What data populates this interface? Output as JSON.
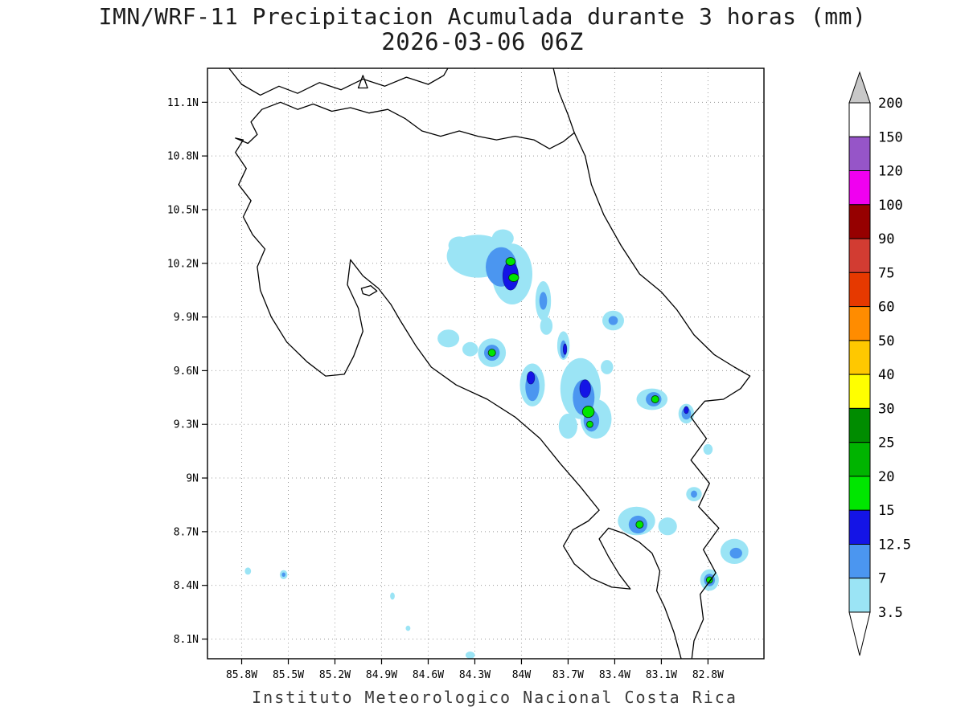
{
  "title": "IMN/WRF-11 Precipitacion Acumulada durante 3 horas (mm)",
  "subtitle": "2026-03-06 06Z",
  "footer": "Instituto Meteorologico Nacional Costa Rica",
  "chart_data": {
    "type": "heatmap",
    "title": "IMN/WRF-11 Precipitacion Acumulada durante 3 horas (mm)",
    "subtitle": "2026-03-06 06Z",
    "units": "mm",
    "lon_range": [
      -86.02,
      -82.44
    ],
    "lat_range": [
      7.99,
      11.29
    ],
    "grid": true,
    "lon_ticks": [
      {
        "label": "85.8W",
        "value": -85.8
      },
      {
        "label": "85.5W",
        "value": -85.5
      },
      {
        "label": "85.2W",
        "value": -85.2
      },
      {
        "label": "84.9W",
        "value": -84.9
      },
      {
        "label": "84.6W",
        "value": -84.6
      },
      {
        "label": "84.3W",
        "value": -84.3
      },
      {
        "label": "84W",
        "value": -84.0
      },
      {
        "label": "83.7W",
        "value": -83.7
      },
      {
        "label": "83.4W",
        "value": -83.4
      },
      {
        "label": "83.1W",
        "value": -83.1
      },
      {
        "label": "82.8W",
        "value": -82.8
      }
    ],
    "lat_ticks": [
      {
        "label": "11.1N",
        "value": 11.1
      },
      {
        "label": "10.8N",
        "value": 10.8
      },
      {
        "label": "10.5N",
        "value": 10.5
      },
      {
        "label": "10.2N",
        "value": 10.2
      },
      {
        "label": "9.9N",
        "value": 9.9
      },
      {
        "label": "9.6N",
        "value": 9.6
      },
      {
        "label": "9.3N",
        "value": 9.3
      },
      {
        "label": "9N",
        "value": 9.0
      },
      {
        "label": "8.7N",
        "value": 8.7
      },
      {
        "label": "8.4N",
        "value": 8.4
      },
      {
        "label": "8.1N",
        "value": 8.1
      }
    ],
    "colorbar": {
      "position": "right",
      "labels": [
        "200",
        "150",
        "120",
        "100",
        "90",
        "75",
        "60",
        "50",
        "40",
        "30",
        "25",
        "20",
        "15",
        "12.5",
        "7",
        "3.5"
      ],
      "segment_colors_top_to_bottom": [
        "#ffffff",
        "#9655c8",
        "#f000f0",
        "#960000",
        "#d23c32",
        "#e63900",
        "#ff8c00",
        "#ffc800",
        "#ffff00",
        "#008c00",
        "#00b400",
        "#00e600",
        "#1414e6",
        "#4b96f0",
        "#9be4f5"
      ],
      "above_max_color": "#c8c8c8",
      "below_min_color": "#ffffff"
    },
    "palette": {
      "L1": "#9be4f5",
      "L2": "#4b96f0",
      "L3": "#1414e6",
      "L4": "#00e600",
      "L5": "#00b400"
    },
    "palette_level_values_mm": {
      "L1": 3.5,
      "L2": 7,
      "L3": 12.5,
      "L4": 15,
      "L5": 20
    },
    "precip_blobs": [
      [
        -84.28,
        10.24,
        0.2,
        0.12,
        "L1"
      ],
      [
        -84.06,
        10.14,
        0.13,
        0.17,
        "L1"
      ],
      [
        -84.4,
        10.3,
        0.07,
        0.05,
        "L1"
      ],
      [
        -84.12,
        10.34,
        0.07,
        0.05,
        "L1"
      ],
      [
        -83.86,
        9.99,
        0.05,
        0.11,
        "L1"
      ],
      [
        -83.84,
        9.85,
        0.04,
        0.05,
        "L1"
      ],
      [
        -84.47,
        9.78,
        0.07,
        0.05,
        "L1"
      ],
      [
        -84.33,
        9.72,
        0.05,
        0.04,
        "L1"
      ],
      [
        -84.19,
        9.7,
        0.09,
        0.08,
        "L1"
      ],
      [
        -83.73,
        9.74,
        0.04,
        0.08,
        "L1"
      ],
      [
        -83.93,
        9.52,
        0.08,
        0.12,
        "L1"
      ],
      [
        -83.62,
        9.5,
        0.13,
        0.17,
        "L1"
      ],
      [
        -83.52,
        9.33,
        0.1,
        0.11,
        "L1"
      ],
      [
        -83.7,
        9.29,
        0.06,
        0.07,
        "L1"
      ],
      [
        -83.41,
        9.88,
        0.07,
        0.055,
        "L1"
      ],
      [
        -83.45,
        9.62,
        0.04,
        0.04,
        "L1"
      ],
      [
        -83.16,
        9.44,
        0.1,
        0.06,
        "L1"
      ],
      [
        -82.94,
        9.36,
        0.05,
        0.055,
        "L1"
      ],
      [
        -82.8,
        9.16,
        0.03,
        0.03,
        "L1"
      ],
      [
        -82.89,
        8.91,
        0.05,
        0.04,
        "L1"
      ],
      [
        -83.26,
        8.76,
        0.12,
        0.08,
        "L1"
      ],
      [
        -83.06,
        8.73,
        0.06,
        0.05,
        "L1"
      ],
      [
        -82.63,
        8.59,
        0.09,
        0.07,
        "L1"
      ],
      [
        -82.79,
        8.43,
        0.06,
        0.06,
        "L1"
      ],
      [
        -85.76,
        8.48,
        0.02,
        0.02,
        "L1"
      ],
      [
        -85.53,
        8.46,
        0.025,
        0.025,
        "L1"
      ],
      [
        -84.83,
        8.34,
        0.015,
        0.02,
        "L1"
      ],
      [
        -84.73,
        8.16,
        0.015,
        0.015,
        "L1"
      ],
      [
        -84.33,
        8.01,
        0.03,
        0.02,
        "L1"
      ],
      [
        -84.13,
        10.18,
        0.1,
        0.11,
        "L2"
      ],
      [
        -83.86,
        9.99,
        0.025,
        0.05,
        "L2"
      ],
      [
        -84.19,
        9.7,
        0.05,
        0.045,
        "L2"
      ],
      [
        -83.73,
        9.72,
        0.02,
        0.05,
        "L2"
      ],
      [
        -83.93,
        9.51,
        0.045,
        0.08,
        "L2"
      ],
      [
        -83.6,
        9.45,
        0.07,
        0.1,
        "L2"
      ],
      [
        -83.55,
        9.32,
        0.05,
        0.06,
        "L2"
      ],
      [
        -83.41,
        9.88,
        0.03,
        0.025,
        "L2"
      ],
      [
        -83.15,
        9.44,
        0.05,
        0.04,
        "L2"
      ],
      [
        -82.94,
        9.36,
        0.03,
        0.033,
        "L2"
      ],
      [
        -82.89,
        8.91,
        0.02,
        0.02,
        "L2"
      ],
      [
        -83.25,
        8.74,
        0.06,
        0.05,
        "L2"
      ],
      [
        -82.62,
        8.58,
        0.04,
        0.03,
        "L2"
      ],
      [
        -82.79,
        8.43,
        0.035,
        0.035,
        "L2"
      ],
      [
        -85.53,
        8.46,
        0.012,
        0.012,
        "L2"
      ],
      [
        -84.07,
        10.13,
        0.05,
        0.08,
        "L3"
      ],
      [
        -83.94,
        9.56,
        0.025,
        0.035,
        "L3"
      ],
      [
        -83.59,
        9.5,
        0.035,
        0.05,
        "L3"
      ],
      [
        -83.72,
        9.72,
        0.012,
        0.03,
        "L3"
      ],
      [
        -82.94,
        9.38,
        0.015,
        0.02,
        "L3"
      ],
      [
        -84.07,
        10.21,
        0.03,
        0.022,
        "L4"
      ],
      [
        -84.05,
        10.12,
        0.032,
        0.022,
        "L4"
      ],
      [
        -84.19,
        9.7,
        0.024,
        0.02,
        "L4"
      ],
      [
        -83.57,
        9.37,
        0.038,
        0.032,
        "L4"
      ],
      [
        -83.56,
        9.3,
        0.02,
        0.018,
        "L4"
      ],
      [
        -83.14,
        9.44,
        0.024,
        0.02,
        "L4"
      ],
      [
        -83.24,
        8.74,
        0.024,
        0.02,
        "L4"
      ],
      [
        -82.79,
        8.43,
        0.02,
        0.018,
        "L4"
      ]
    ],
    "coastlines": [
      {
        "name": "costa-rica-outline",
        "closed": false,
        "points": [
          [
            -82.96,
            7.95
          ],
          [
            -83.02,
            8.14
          ],
          [
            -83.08,
            8.28
          ],
          [
            -83.13,
            8.37
          ],
          [
            -83.11,
            8.48
          ],
          [
            -83.16,
            8.58
          ],
          [
            -83.24,
            8.64
          ],
          [
            -83.34,
            8.69
          ],
          [
            -83.44,
            8.72
          ],
          [
            -83.5,
            8.66
          ],
          [
            -83.44,
            8.56
          ],
          [
            -83.37,
            8.46
          ],
          [
            -83.3,
            8.38
          ],
          [
            -83.42,
            8.39
          ],
          [
            -83.55,
            8.44
          ],
          [
            -83.66,
            8.52
          ],
          [
            -83.73,
            8.62
          ],
          [
            -83.67,
            8.71
          ],
          [
            -83.57,
            8.76
          ],
          [
            -83.5,
            8.82
          ],
          [
            -83.62,
            8.95
          ],
          [
            -83.75,
            9.08
          ],
          [
            -83.88,
            9.22
          ],
          [
            -84.04,
            9.34
          ],
          [
            -84.22,
            9.44
          ],
          [
            -84.42,
            9.52
          ],
          [
            -84.58,
            9.62
          ],
          [
            -84.68,
            9.74
          ],
          [
            -84.78,
            9.88
          ],
          [
            -84.84,
            9.97
          ],
          [
            -84.92,
            10.06
          ],
          [
            -85.02,
            10.13
          ],
          [
            -85.1,
            10.22
          ],
          [
            -85.12,
            10.08
          ],
          [
            -85.05,
            9.95
          ],
          [
            -85.02,
            9.82
          ],
          [
            -85.08,
            9.68
          ],
          [
            -85.14,
            9.58
          ],
          [
            -85.26,
            9.57
          ],
          [
            -85.38,
            9.65
          ],
          [
            -85.51,
            9.76
          ],
          [
            -85.61,
            9.9
          ],
          [
            -85.68,
            10.05
          ],
          [
            -85.7,
            10.18
          ],
          [
            -85.65,
            10.28
          ],
          [
            -85.73,
            10.36
          ],
          [
            -85.79,
            10.46
          ],
          [
            -85.74,
            10.55
          ],
          [
            -85.82,
            10.64
          ],
          [
            -85.77,
            10.73
          ],
          [
            -85.84,
            10.82
          ],
          [
            -85.79,
            10.89
          ],
          [
            -85.84,
            10.9
          ],
          [
            -85.76,
            10.87
          ],
          [
            -85.7,
            10.92
          ],
          [
            -85.74,
            10.99
          ],
          [
            -85.67,
            11.06
          ],
          [
            -85.55,
            11.1
          ],
          [
            -85.44,
            11.06
          ],
          [
            -85.34,
            11.09
          ],
          [
            -85.22,
            11.05
          ],
          [
            -85.1,
            11.07
          ],
          [
            -84.98,
            11.04
          ],
          [
            -84.86,
            11.06
          ],
          [
            -84.75,
            11.01
          ],
          [
            -84.64,
            10.94
          ],
          [
            -84.52,
            10.91
          ],
          [
            -84.4,
            10.94
          ],
          [
            -84.28,
            10.91
          ],
          [
            -84.16,
            10.89
          ],
          [
            -84.04,
            10.91
          ],
          [
            -83.92,
            10.89
          ],
          [
            -83.82,
            10.84
          ],
          [
            -83.73,
            10.88
          ],
          [
            -83.66,
            10.93
          ],
          [
            -83.59,
            10.8
          ],
          [
            -83.55,
            10.64
          ],
          [
            -83.47,
            10.47
          ],
          [
            -83.36,
            10.3
          ],
          [
            -83.24,
            10.14
          ],
          [
            -83.1,
            10.04
          ],
          [
            -83.0,
            9.94
          ],
          [
            -82.89,
            9.8
          ],
          [
            -82.76,
            9.69
          ],
          [
            -82.63,
            9.62
          ],
          [
            -82.53,
            9.57
          ],
          [
            -82.59,
            9.5
          ],
          [
            -82.7,
            9.44
          ],
          [
            -82.82,
            9.43
          ],
          [
            -82.91,
            9.34
          ],
          [
            -82.81,
            9.22
          ],
          [
            -82.91,
            9.1
          ],
          [
            -82.79,
            8.97
          ],
          [
            -82.86,
            8.84
          ],
          [
            -82.73,
            8.72
          ],
          [
            -82.83,
            8.6
          ],
          [
            -82.75,
            8.47
          ],
          [
            -82.85,
            8.35
          ],
          [
            -82.83,
            8.21
          ],
          [
            -82.89,
            8.09
          ],
          [
            -82.91,
            7.95
          ]
        ]
      },
      {
        "name": "lake-nicaragua-shore",
        "closed": false,
        "points": [
          [
            -85.9,
            11.31
          ],
          [
            -85.8,
            11.2
          ],
          [
            -85.68,
            11.14
          ],
          [
            -85.56,
            11.19
          ],
          [
            -85.44,
            11.15
          ],
          [
            -85.3,
            11.21
          ],
          [
            -85.16,
            11.17
          ],
          [
            -85.02,
            11.23
          ],
          [
            -84.88,
            11.19
          ],
          [
            -84.74,
            11.24
          ],
          [
            -84.6,
            11.2
          ],
          [
            -84.5,
            11.25
          ],
          [
            -84.46,
            11.31
          ]
        ]
      },
      {
        "name": "nicaragua-caribbean-coast",
        "closed": false,
        "points": [
          [
            -83.8,
            11.31
          ],
          [
            -83.76,
            11.16
          ],
          [
            -83.7,
            11.03
          ],
          [
            -83.66,
            10.93
          ]
        ]
      },
      {
        "name": "lake-island",
        "closed": true,
        "points": [
          [
            -85.02,
            11.25
          ],
          [
            -85.05,
            11.18
          ],
          [
            -84.99,
            11.18
          ]
        ]
      },
      {
        "name": "isla-chira",
        "closed": true,
        "points": [
          [
            -85.03,
            10.06
          ],
          [
            -84.97,
            10.075
          ],
          [
            -84.93,
            10.045
          ],
          [
            -84.98,
            10.02
          ],
          [
            -85.02,
            10.03
          ]
        ]
      }
    ]
  }
}
